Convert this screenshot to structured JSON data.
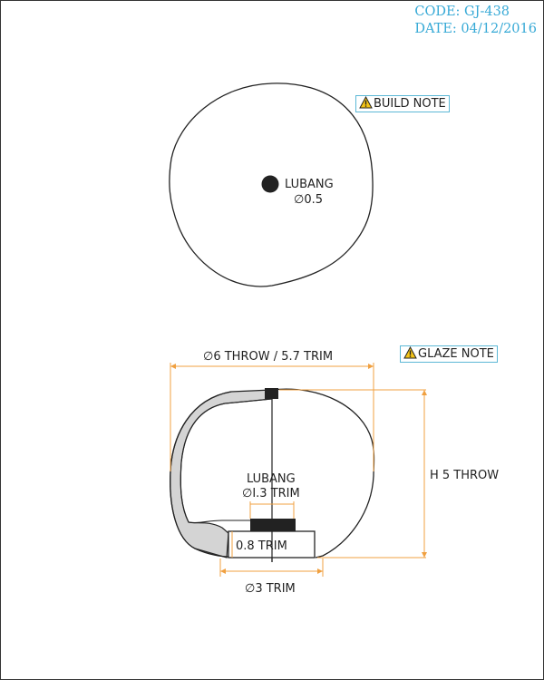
{
  "header": {
    "code": "CODE: GJ-438",
    "date": "DATE: 04/12/2016",
    "color": "#36a9d6"
  },
  "notes": {
    "build": "BUILD NOTE",
    "glaze": "GLAZE NOTE",
    "warning_icon": "warning-triangle-icon"
  },
  "top_view": {
    "lug_name": "LUBANG",
    "lug_dia": "∅0.5"
  },
  "side_view": {
    "overall_dia": "∅6 THROW / 5.7 TRIM",
    "height": "H 5 THROW",
    "lug_name": "LUBANG",
    "lug_dia": "∅I.3 TRIM",
    "foot_height": "0.8 TRIM",
    "foot_dia": "∅3 TRIM"
  },
  "colors": {
    "outline": "#222222",
    "dimension": "#f0a040",
    "glaze": "#d4d4d4",
    "note_border": "#5cb8d6"
  }
}
